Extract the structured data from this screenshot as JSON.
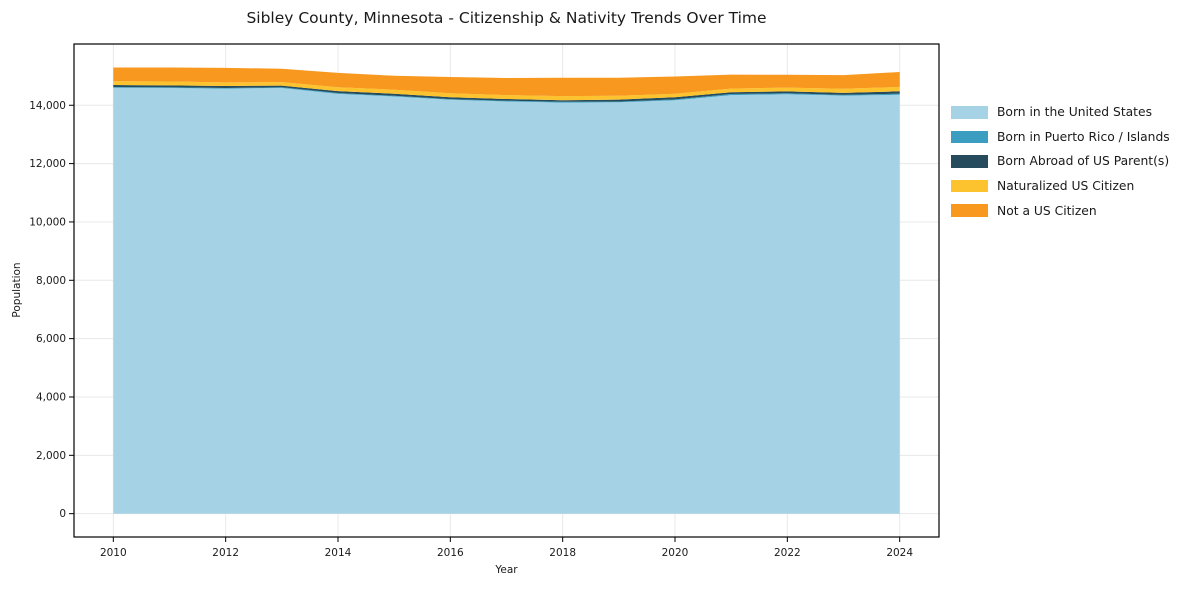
{
  "page": {
    "background": "#ffffff"
  },
  "chart_data": {
    "type": "area",
    "stacked": true,
    "title": "Sibley County, Minnesota - Citizenship & Nativity Trends Over Time",
    "xlabel": "Year",
    "ylabel": "Population",
    "x": [
      2010,
      2011,
      2012,
      2013,
      2014,
      2015,
      2016,
      2017,
      2018,
      2019,
      2020,
      2021,
      2022,
      2023,
      2024
    ],
    "series": [
      {
        "name": "Born in the United States",
        "color": "#a5d3e5",
        "values": [
          14600,
          14590,
          14570,
          14590,
          14390,
          14300,
          14190,
          14130,
          14090,
          14100,
          14170,
          14350,
          14380,
          14330,
          14360
        ]
      },
      {
        "name": "Born in Puerto Rico / Islands",
        "color": "#3b9ec0",
        "values": [
          25,
          25,
          20,
          25,
          30,
          25,
          20,
          25,
          30,
          25,
          30,
          35,
          30,
          25,
          40
        ]
      },
      {
        "name": "Born Abroad of US Parent(s)",
        "color": "#254b5c",
        "values": [
          70,
          65,
          70,
          60,
          65,
          70,
          65,
          60,
          55,
          70,
          75,
          60,
          65,
          70,
          80
        ]
      },
      {
        "name": "Naturalized US Citizen",
        "color": "#fcc32e",
        "values": [
          130,
          135,
          125,
          120,
          135,
          140,
          140,
          135,
          140,
          130,
          120,
          125,
          130,
          140,
          150
        ]
      },
      {
        "name": "Not a US Citizen",
        "color": "#f8981f",
        "values": [
          470,
          480,
          495,
          460,
          490,
          475,
          555,
          585,
          630,
          620,
          590,
          480,
          440,
          470,
          510
        ]
      }
    ],
    "xlim": [
      2009.3,
      2024.7
    ],
    "ylim": [
      -800,
      16100
    ],
    "x_ticks": [
      {
        "v": 2010,
        "label": "2010"
      },
      {
        "v": 2012,
        "label": "2012"
      },
      {
        "v": 2014,
        "label": "2014"
      },
      {
        "v": 2016,
        "label": "2016"
      },
      {
        "v": 2018,
        "label": "2018"
      },
      {
        "v": 2020,
        "label": "2020"
      },
      {
        "v": 2022,
        "label": "2022"
      },
      {
        "v": 2024,
        "label": "2024"
      }
    ],
    "y_ticks": [
      {
        "v": 0,
        "label": "0"
      },
      {
        "v": 2000,
        "label": "2,000"
      },
      {
        "v": 4000,
        "label": "4,000"
      },
      {
        "v": 6000,
        "label": "6,000"
      },
      {
        "v": 8000,
        "label": "8,000"
      },
      {
        "v": 10000,
        "label": "10,000"
      },
      {
        "v": 12000,
        "label": "12,000"
      },
      {
        "v": 14000,
        "label": "14,000"
      }
    ],
    "grid": true,
    "grid_color": "#e8e8e8",
    "spine_color": "#000000",
    "text_color": "#1a1a1a",
    "legend_position": "right"
  }
}
